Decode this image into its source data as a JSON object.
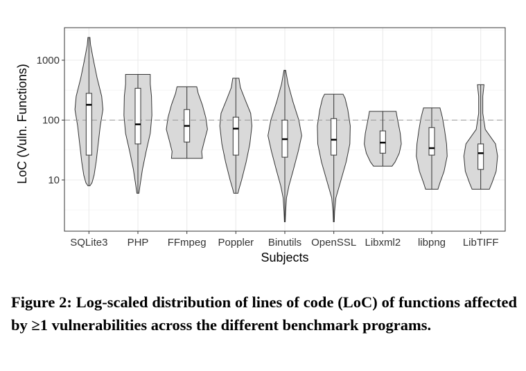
{
  "chart_data": {
    "type": "violin",
    "scale": "log10",
    "xlabel": "Subjects",
    "ylabel": "LoC (Vuln. Functions)",
    "y_ticks": [
      10,
      100,
      1000
    ],
    "y_tick_labels": [
      "10",
      "100",
      "1000"
    ],
    "ylim": [
      1.3,
      3500
    ],
    "reference_line": 100,
    "grid": true,
    "fill_color": "#d9d9d9",
    "categories": [
      "SQLite3",
      "PHP",
      "FFmpeg",
      "Poppler",
      "Binutils",
      "OpenSSL",
      "Libxml2",
      "libpng",
      "LibTIFF"
    ],
    "series": [
      {
        "category": "SQLite3",
        "min": 8,
        "max": 2400,
        "q1": 26,
        "median": 180,
        "q3": 280,
        "density": [
          [
            8,
            0.05
          ],
          [
            9,
            0.15
          ],
          [
            12,
            0.25
          ],
          [
            20,
            0.35
          ],
          [
            40,
            0.45
          ],
          [
            80,
            0.55
          ],
          [
            150,
            0.68
          ],
          [
            250,
            0.62
          ],
          [
            500,
            0.4
          ],
          [
            1000,
            0.22
          ],
          [
            1800,
            0.08
          ],
          [
            2400,
            0.05
          ]
        ]
      },
      {
        "category": "PHP",
        "min": 6,
        "max": 580,
        "q1": 40,
        "median": 85,
        "q3": 340,
        "density": [
          [
            6,
            0.05
          ],
          [
            8,
            0.1
          ],
          [
            15,
            0.22
          ],
          [
            30,
            0.4
          ],
          [
            60,
            0.6
          ],
          [
            120,
            0.68
          ],
          [
            250,
            0.66
          ],
          [
            400,
            0.6
          ],
          [
            580,
            0.6
          ]
        ]
      },
      {
        "category": "FFmpeg",
        "min": 23,
        "max": 360,
        "q1": 43,
        "median": 80,
        "q3": 150,
        "density": [
          [
            23,
            0.75
          ],
          [
            30,
            0.72
          ],
          [
            45,
            0.85
          ],
          [
            70,
            1.0
          ],
          [
            110,
            0.92
          ],
          [
            180,
            0.75
          ],
          [
            280,
            0.55
          ],
          [
            360,
            0.48
          ]
        ]
      },
      {
        "category": "Poppler",
        "min": 6,
        "max": 500,
        "q1": 26,
        "median": 72,
        "q3": 112,
        "density": [
          [
            6,
            0.1
          ],
          [
            7,
            0.15
          ],
          [
            10,
            0.28
          ],
          [
            20,
            0.5
          ],
          [
            40,
            0.68
          ],
          [
            80,
            0.78
          ],
          [
            130,
            0.72
          ],
          [
            220,
            0.45
          ],
          [
            350,
            0.22
          ],
          [
            500,
            0.15
          ]
        ]
      },
      {
        "category": "Binutils",
        "min": 2,
        "max": 680,
        "q1": 24,
        "median": 48,
        "q3": 100,
        "density": [
          [
            2,
            0.02
          ],
          [
            3,
            0.04
          ],
          [
            5,
            0.08
          ],
          [
            8,
            0.2
          ],
          [
            15,
            0.42
          ],
          [
            30,
            0.65
          ],
          [
            55,
            0.82
          ],
          [
            100,
            0.68
          ],
          [
            200,
            0.4
          ],
          [
            400,
            0.16
          ],
          [
            680,
            0.04
          ]
        ]
      },
      {
        "category": "OpenSSL",
        "min": 2,
        "max": 270,
        "q1": 26,
        "median": 47,
        "q3": 106,
        "density": [
          [
            2,
            0.02
          ],
          [
            3,
            0.04
          ],
          [
            5,
            0.1
          ],
          [
            10,
            0.35
          ],
          [
            20,
            0.6
          ],
          [
            40,
            0.78
          ],
          [
            80,
            0.8
          ],
          [
            150,
            0.68
          ],
          [
            230,
            0.55
          ],
          [
            270,
            0.45
          ]
        ]
      },
      {
        "category": "Libxml2",
        "min": 17,
        "max": 140,
        "q1": 28,
        "median": 42,
        "q3": 66,
        "density": [
          [
            17,
            0.45
          ],
          [
            20,
            0.6
          ],
          [
            28,
            0.8
          ],
          [
            40,
            0.9
          ],
          [
            60,
            0.85
          ],
          [
            90,
            0.75
          ],
          [
            120,
            0.68
          ],
          [
            140,
            0.65
          ]
        ]
      },
      {
        "category": "libpng",
        "min": 7,
        "max": 160,
        "q1": 26,
        "median": 34,
        "q3": 75,
        "density": [
          [
            7,
            0.3
          ],
          [
            9,
            0.4
          ],
          [
            14,
            0.6
          ],
          [
            25,
            0.75
          ],
          [
            40,
            0.72
          ],
          [
            70,
            0.62
          ],
          [
            110,
            0.52
          ],
          [
            160,
            0.4
          ]
        ]
      },
      {
        "category": "LibTIFF",
        "min": 7,
        "max": 390,
        "q1": 15,
        "median": 28,
        "q3": 40,
        "density": [
          [
            7,
            0.42
          ],
          [
            9,
            0.55
          ],
          [
            14,
            0.75
          ],
          [
            25,
            0.82
          ],
          [
            40,
            0.72
          ],
          [
            70,
            0.22
          ],
          [
            130,
            0.1
          ],
          [
            250,
            0.1
          ],
          [
            390,
            0.16
          ]
        ]
      }
    ]
  },
  "caption": "Figure 2: Log-scaled distribution of lines of code (LoC) of functions affected by ≥1 vulnerabilities across the different benchmark programs."
}
